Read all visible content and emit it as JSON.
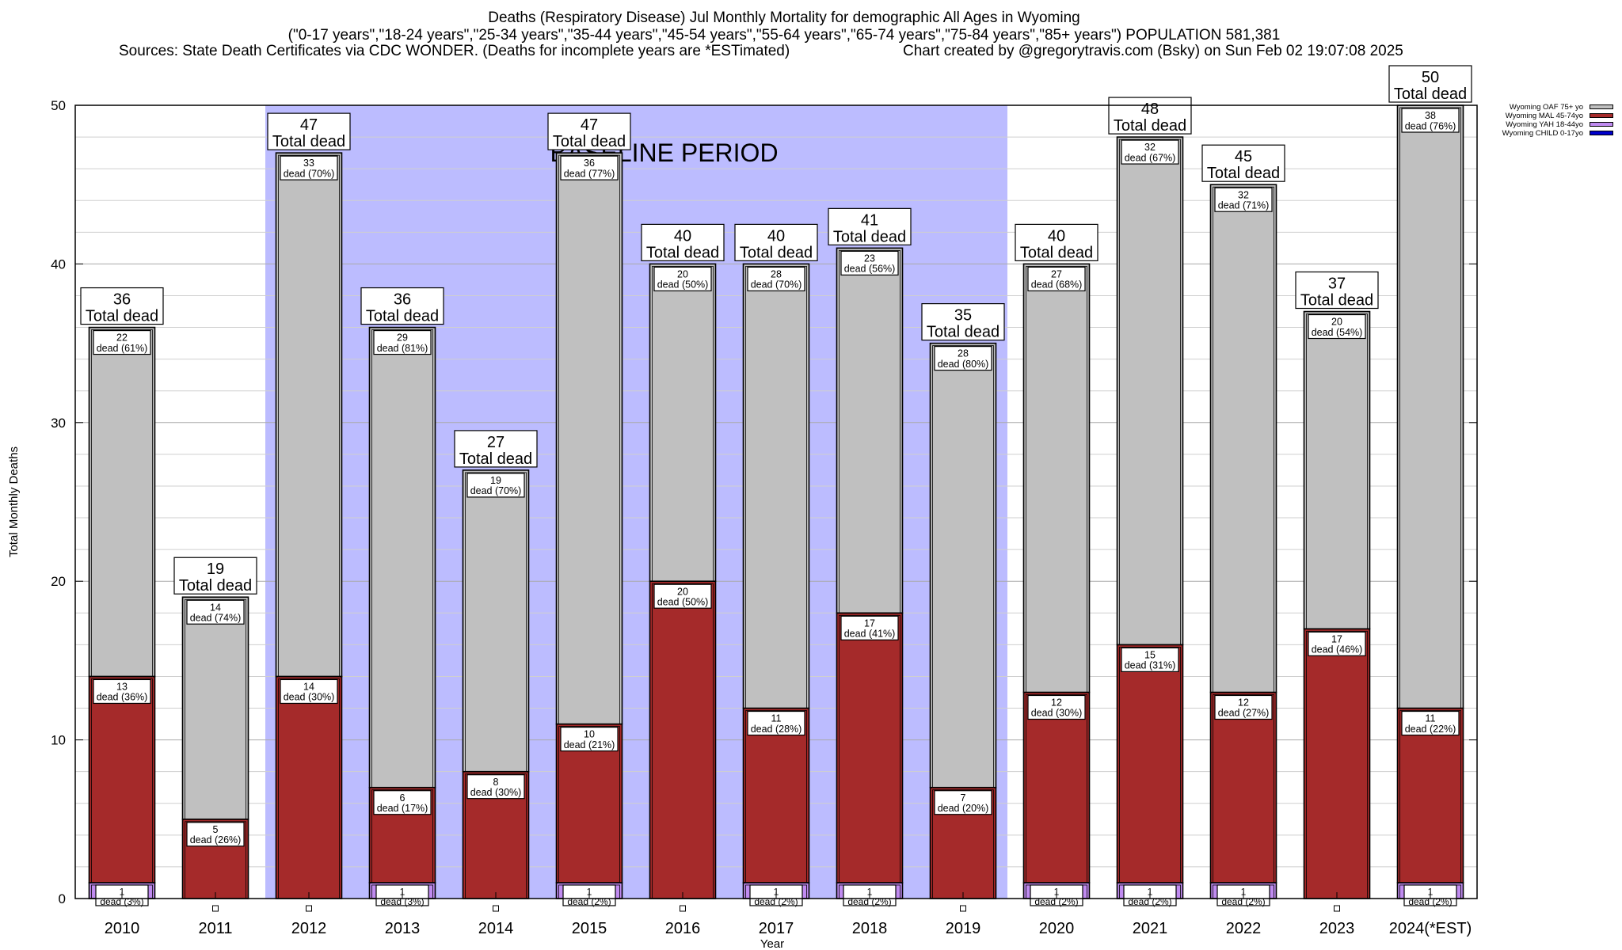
{
  "header": {
    "title_line1": "Deaths (Respiratory Disease) Jul Monthly Mortality for demographic All Ages in Wyoming",
    "title_line2": "(\"0-17 years\",\"18-24 years\",\"25-34 years\",\"35-44 years\",\"45-54 years\",\"55-64 years\",\"65-74 years\",\"75-84 years\",\"85+ years\") POPULATION 581,381",
    "sources": "Sources: State Death Certificates via CDC WONDER. (Deaths for incomplete years are *ESTimated)",
    "credit": "Chart created by @gregorytravis.com (Bsky) on Sun Feb 02 19:07:08 2025"
  },
  "chart_data": {
    "type": "bar",
    "stacked": true,
    "xlabel": "Year",
    "ylabel": "Total Monthly Deaths",
    "ylim": [
      0,
      50
    ],
    "yticks": [
      0,
      10,
      20,
      30,
      40,
      50
    ],
    "grid": true,
    "legend_position": "top-right",
    "categories": [
      "2010",
      "2011",
      "2012",
      "2013",
      "2014",
      "2015",
      "2016",
      "2017",
      "2018",
      "2019",
      "2020",
      "2021",
      "2022",
      "2023",
      "2024(*EST)"
    ],
    "series": [
      {
        "name": "Wyoming CHILD 0-17yo",
        "color": "#0000cc",
        "values": [
          0,
          0,
          0,
          0,
          0,
          0,
          0,
          0,
          0,
          0,
          0,
          0,
          0,
          0,
          0
        ]
      },
      {
        "name": "Wyoming YAH 18-44yo",
        "color": "#c08bf0",
        "values": [
          1,
          0,
          0,
          1,
          0,
          1,
          0,
          1,
          1,
          0,
          1,
          1,
          1,
          0,
          1
        ],
        "pct": [
          "3%",
          "",
          "",
          "3%",
          "",
          "2%",
          "",
          "2%",
          "2%",
          "",
          "2%",
          "2%",
          "2%",
          "",
          "2%"
        ]
      },
      {
        "name": "Wyoming MAL 45-74yo",
        "color": "#a52a2a",
        "values": [
          13,
          5,
          14,
          6,
          8,
          10,
          20,
          11,
          17,
          7,
          12,
          15,
          12,
          17,
          11
        ],
        "pct": [
          "36%",
          "26%",
          "30%",
          "17%",
          "30%",
          "21%",
          "50%",
          "28%",
          "41%",
          "20%",
          "30%",
          "31%",
          "27%",
          "46%",
          "22%"
        ]
      },
      {
        "name": "Wyoming OAF 75+ yo",
        "color": "#c0c0c0",
        "values": [
          22,
          14,
          33,
          29,
          19,
          36,
          20,
          28,
          23,
          28,
          27,
          32,
          32,
          20,
          38
        ],
        "pct": [
          "61%",
          "74%",
          "70%",
          "81%",
          "70%",
          "77%",
          "50%",
          "70%",
          "56%",
          "80%",
          "68%",
          "67%",
          "71%",
          "54%",
          "76%"
        ]
      }
    ],
    "totals": [
      36,
      19,
      47,
      36,
      27,
      47,
      40,
      40,
      41,
      35,
      40,
      48,
      45,
      37,
      50
    ],
    "total_label": "Total dead",
    "dead_label": "dead",
    "baseline": {
      "label": "BASELINE PERIOD",
      "from": "2012",
      "to": "2019",
      "color": "#bcbcff"
    }
  }
}
